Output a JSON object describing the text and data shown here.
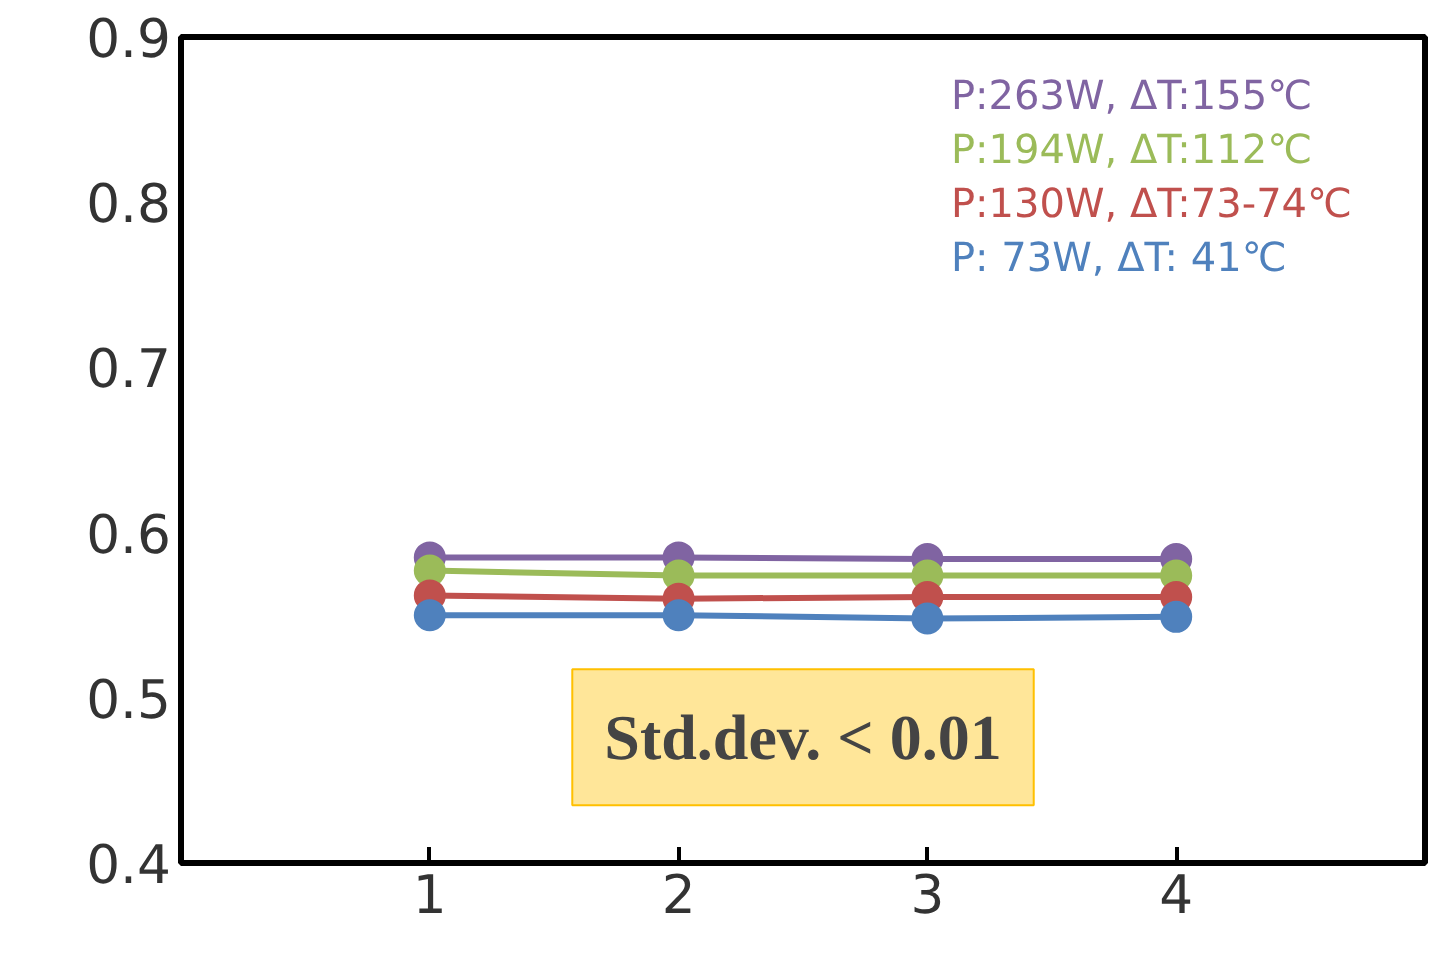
{
  "chart_data": {
    "type": "line",
    "x": [
      1,
      2,
      3,
      4
    ],
    "xlim": [
      0,
      5
    ],
    "xticks": [
      1,
      2,
      3,
      4
    ],
    "ylim": [
      0.4,
      0.9
    ],
    "yticks": [
      0.4,
      0.5,
      0.6,
      0.7,
      0.8,
      0.9
    ],
    "grid": false,
    "marker": "circle",
    "legend": "top right",
    "series": [
      {
        "name": "P:263W, ΔT:155℃",
        "color": "#8064a2",
        "values": [
          0.585,
          0.585,
          0.584,
          0.584
        ]
      },
      {
        "name": "P:194W, ΔT:112℃",
        "color": "#9bbb59",
        "values": [
          0.577,
          0.574,
          0.574,
          0.574
        ]
      },
      {
        "name": "P:130W, ΔT:73-74℃",
        "color": "#c0504d",
        "values": [
          0.562,
          0.56,
          0.561,
          0.561
        ]
      },
      {
        "name": "P: 73W, ΔT: 41℃",
        "color": "#4f81bd",
        "values": [
          0.55,
          0.55,
          0.548,
          0.549
        ]
      }
    ],
    "annotations": [
      "Std.dev. < 0.01"
    ]
  }
}
